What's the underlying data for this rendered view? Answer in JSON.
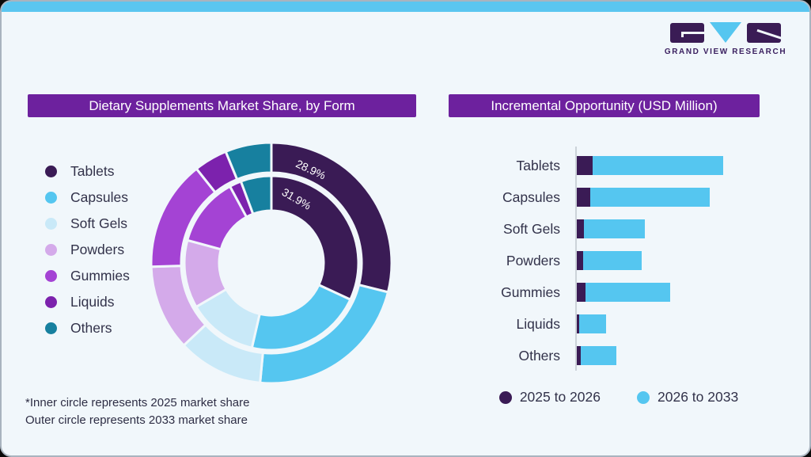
{
  "colors": {
    "top_strip": "#5bc6f0",
    "card_background": "#f1f7fb",
    "banner_purple": "#6d219e",
    "text_dark": "#32324a",
    "axis_gray": "#ccd3d9",
    "logo_purple": "#3a1c55",
    "logo_blue": "#55c6f0",
    "logo_caption_purple": "#3b2060",
    "series_dark_purple": "#3a1b55",
    "series_bright_blue": "#55c6f0"
  },
  "logo": {
    "caption": "GRAND VIEW RESEARCH"
  },
  "left_chart": {
    "title": "Dietary Supplements Market Share, by Form",
    "labels": {
      "outer": "28.9%",
      "inner": "31.9%"
    },
    "footnotes": [
      "*Inner circle represents 2025 market share",
      "Outer circle represents 2033 market share"
    ]
  },
  "right_chart": {
    "title": "Incremental Opportunity (USD Million)"
  },
  "chart_data": [
    {
      "type": "pie",
      "subtype": "double-ring-donut",
      "title": "Dietary Supplements Market Share, by Form",
      "categories": [
        "Tablets",
        "Capsules",
        "Soft Gels",
        "Powders",
        "Gummies",
        "Liquids",
        "Others"
      ],
      "colors": [
        "#3a1b55",
        "#55c6f0",
        "#c9e9f8",
        "#d4aaea",
        "#a443d4",
        "#7c22ad",
        "#17809f"
      ],
      "series": [
        {
          "name": "2025 market share (inner circle)",
          "values": [
            31.9,
            21.7,
            13.0,
            12.6,
            12.9,
            2.2,
            5.7
          ]
        },
        {
          "name": "2033 market share (outer circle)",
          "values": [
            28.9,
            22.6,
            11.5,
            11.5,
            14.8,
            4.5,
            6.2
          ]
        }
      ],
      "shown_value_labels": [
        {
          "ring": "outer",
          "category": "Tablets",
          "text": "28.9%"
        },
        {
          "ring": "inner",
          "category": "Tablets",
          "text": "31.9%"
        }
      ],
      "note": "Only Tablets shares are labeled in the image; other segment values estimated from arc angles.",
      "legend_position": "left"
    },
    {
      "type": "bar",
      "orientation": "horizontal",
      "title": "Incremental Opportunity (USD Million)",
      "categories": [
        "Tablets",
        "Capsules",
        "Soft Gels",
        "Powders",
        "Gummies",
        "Liquids",
        "Others"
      ],
      "series": [
        {
          "name": "2025 to 2026",
          "color": "#3a1b55",
          "values": [
            20,
            17,
            9,
            8,
            11,
            3,
            5
          ]
        },
        {
          "name": "2026 to 2033",
          "color": "#55c6f0",
          "values": [
            165,
            151,
            77,
            74,
            107,
            34,
            45
          ]
        }
      ],
      "stacked": true,
      "value_axis_labels_shown": false,
      "note": "No numeric axis shown; values are relative bar lengths estimated from pixels.",
      "legend_position": "bottom"
    }
  ]
}
